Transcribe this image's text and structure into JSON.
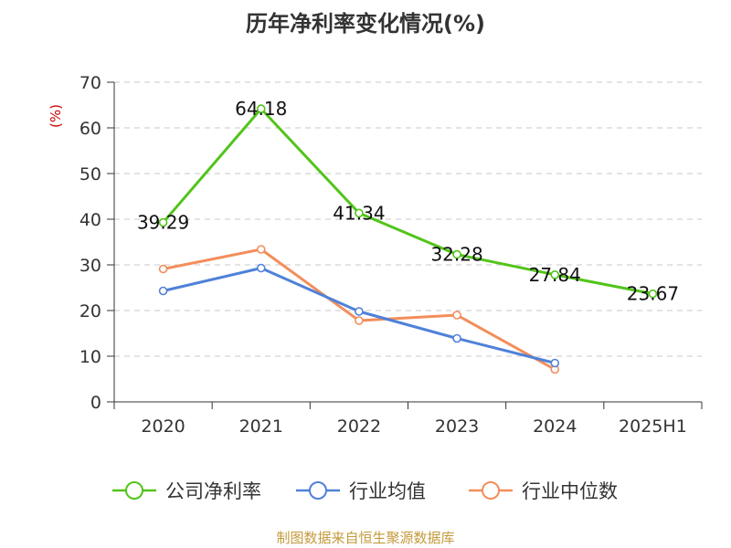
{
  "title": "历年净利率变化情况(%)",
  "source": "制图数据来自恒生聚源数据库",
  "chart_data": {
    "type": "line",
    "title": "历年净利率变化情况(%)",
    "ylabel": "(%)",
    "categories": [
      "2020",
      "2021",
      "2022",
      "2023",
      "2024",
      "2025H1"
    ],
    "ylim": [
      0,
      70
    ],
    "yticks": [
      0,
      10,
      20,
      30,
      40,
      50,
      60,
      70
    ],
    "grid": true,
    "legend_position": "bottom",
    "series": [
      {
        "name": "公司净利率",
        "color": "#52c41a",
        "values": [
          39.29,
          64.18,
          41.34,
          32.28,
          27.84,
          23.67
        ],
        "labels": [
          "39.29",
          "64.18",
          "41.34",
          "32.28",
          "27.84",
          "23.67"
        ]
      },
      {
        "name": "行业均值",
        "color": "#4f81d8",
        "values": [
          24.3,
          29.3,
          19.8,
          13.9,
          8.5,
          null
        ]
      },
      {
        "name": "行业中位数",
        "color": "#f28e5b",
        "values": [
          29.1,
          33.4,
          17.8,
          19.0,
          7.1,
          null
        ]
      }
    ]
  }
}
